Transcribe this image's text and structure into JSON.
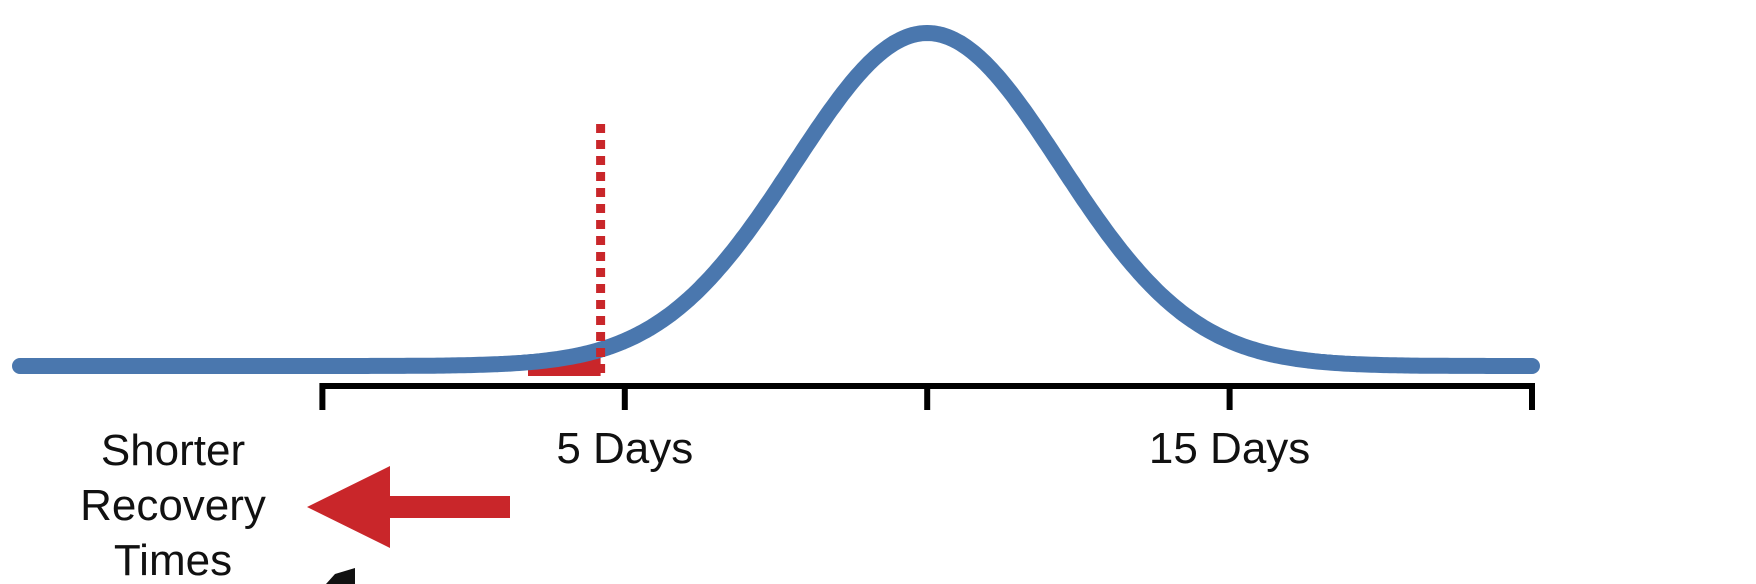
{
  "chart_data": {
    "type": "line",
    "title": "",
    "xlabel": "",
    "ylabel": "",
    "distribution": {
      "kind": "normal",
      "mean_days": 10,
      "sd_days": 2.2
    },
    "x_range_days": [
      -5,
      20
    ],
    "axis_ticks": [
      {
        "value": 0,
        "label": ""
      },
      {
        "value": 5,
        "label": "5 Days"
      },
      {
        "value": 10,
        "label": ""
      },
      {
        "value": 15,
        "label": "15 Days"
      },
      {
        "value": 20,
        "label": ""
      }
    ],
    "threshold_day": 4.6,
    "shaded_tail": "left of threshold",
    "left_annotation": {
      "lines": [
        "Shorter",
        "Recovery",
        "Times"
      ],
      "arrow_direction": "left"
    },
    "colors": {
      "curve": "#4A77AE",
      "tail_fill": "#C9262A",
      "threshold_line": "#C9262A",
      "arrow": "#C9262A",
      "axis": "#000000"
    }
  }
}
